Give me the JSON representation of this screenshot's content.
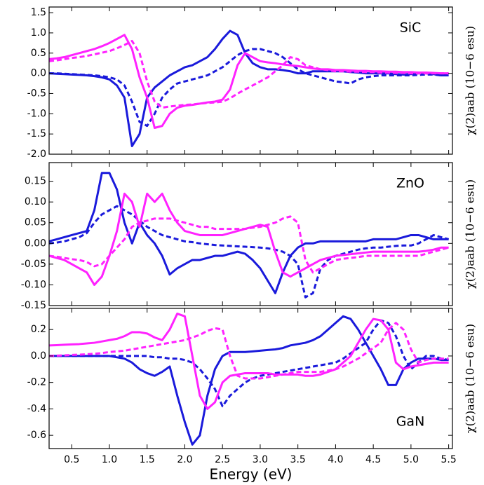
{
  "chart_data": [
    {
      "type": "line",
      "annotation": "SiC",
      "ylabel": "χ(2)aab (10−6 esu)",
      "x": [
        0.2,
        0.3,
        0.4,
        0.5,
        0.6,
        0.7,
        0.8,
        0.9,
        1.0,
        1.1,
        1.2,
        1.3,
        1.4,
        1.5,
        1.6,
        1.7,
        1.8,
        1.9,
        2.0,
        2.1,
        2.2,
        2.3,
        2.4,
        2.5,
        2.6,
        2.7,
        2.8,
        2.9,
        3.0,
        3.1,
        3.2,
        3.3,
        3.4,
        3.5,
        3.6,
        3.7,
        3.8,
        3.9,
        4.0,
        4.1,
        4.2,
        4.3,
        4.4,
        4.5,
        4.6,
        4.7,
        4.8,
        4.9,
        5.0,
        5.1,
        5.2,
        5.3,
        5.4,
        5.5
      ],
      "xlim": [
        0.2,
        5.55
      ],
      "xticks": [
        0.5,
        {
          "value": 1,
          "label": "1.0"
        },
        1.5,
        {
          "value": 2,
          "label": "2.0"
        },
        2.5,
        {
          "value": 3,
          "label": "3.0"
        },
        3.5,
        {
          "value": 4,
          "label": "4.0"
        },
        4.5,
        {
          "value": 5,
          "label": "5.0"
        },
        5.5
      ],
      "ylim": [
        -2.0,
        1.64
      ],
      "yticks": [
        {
          "value": -2,
          "label": "-2.0"
        },
        -1.5,
        {
          "value": -1,
          "label": "-1.0"
        },
        -0.5,
        {
          "value": 0,
          "label": "0.0"
        },
        0.5,
        {
          "value": 1,
          "label": "1.0"
        },
        1.5
      ],
      "series": [
        {
          "color": "#1a1adb",
          "dashed": false,
          "values": [
            0,
            -0.01,
            -0.02,
            -0.03,
            -0.04,
            -0.05,
            -0.07,
            -0.1,
            -0.15,
            -0.3,
            -0.6,
            -1.8,
            -1.5,
            -0.6,
            -0.35,
            -0.2,
            -0.05,
            0.05,
            0.15,
            0.2,
            0.3,
            0.4,
            0.6,
            0.85,
            1.05,
            0.95,
            0.5,
            0.25,
            0.15,
            0.1,
            0.1,
            0.08,
            0.05,
            0,
            0,
            0.05,
            0.05,
            0.05,
            0.05,
            0.05,
            0.03,
            0.02,
            0,
            0,
            0,
            0,
            -0.02,
            -0.03,
            -0.02,
            0,
            0,
            -0.02,
            -0.05,
            -0.05
          ]
        },
        {
          "color": "#1a1adb",
          "dashed": true,
          "values": [
            0,
            0,
            -0.01,
            -0.02,
            -0.03,
            -0.04,
            -0.05,
            -0.07,
            -0.1,
            -0.15,
            -0.3,
            -0.7,
            -1.2,
            -1.3,
            -1.0,
            -0.6,
            -0.4,
            -0.25,
            -0.2,
            -0.15,
            -0.1,
            -0.05,
            0.05,
            0.15,
            0.3,
            0.45,
            0.55,
            0.6,
            0.6,
            0.55,
            0.5,
            0.4,
            0.25,
            0.1,
            0,
            -0.05,
            -0.1,
            -0.15,
            -0.2,
            -0.22,
            -0.25,
            -0.15,
            -0.1,
            -0.07,
            -0.05,
            -0.05,
            -0.05,
            -0.05,
            -0.05,
            -0.04,
            -0.03,
            -0.03,
            -0.05,
            -0.05
          ]
        },
        {
          "color": "#ff22ff",
          "dashed": false,
          "values": [
            0.35,
            0.37,
            0.4,
            0.45,
            0.5,
            0.55,
            0.6,
            0.67,
            0.75,
            0.85,
            0.95,
            0.6,
            -0.1,
            -0.6,
            -1.35,
            -1.3,
            -1.0,
            -0.85,
            -0.8,
            -0.78,
            -0.75,
            -0.72,
            -0.7,
            -0.65,
            -0.4,
            0.2,
            0.5,
            0.4,
            0.3,
            0.27,
            0.25,
            0.22,
            0.2,
            0.18,
            0.15,
            0.12,
            0.1,
            0.1,
            0.08,
            0.08,
            0.07,
            0.06,
            0.06,
            0.05,
            0.05,
            0.04,
            0.04,
            0.03,
            0.03,
            0.02,
            0.02,
            0.01,
            0,
            0
          ]
        },
        {
          "color": "#ff22ff",
          "dashed": true,
          "values": [
            0.3,
            0.32,
            0.35,
            0.38,
            0.4,
            0.43,
            0.47,
            0.51,
            0.55,
            0.62,
            0.7,
            0.8,
            0.5,
            -0.2,
            -0.7,
            -0.85,
            -0.82,
            -0.8,
            -0.78,
            -0.77,
            -0.75,
            -0.73,
            -0.72,
            -0.7,
            -0.62,
            -0.5,
            -0.4,
            -0.3,
            -0.2,
            -0.1,
            0.05,
            0.2,
            0.4,
            0.35,
            0.2,
            0.15,
            0.1,
            0.08,
            0.05,
            0.05,
            0.04,
            0.04,
            0.03,
            0.03,
            0.02,
            0.02,
            0.01,
            0.01,
            0,
            0,
            0,
            0,
            0,
            0
          ]
        }
      ]
    },
    {
      "type": "line",
      "annotation": "ZnO",
      "ylabel": "χ(2)aab (10−6 esu)",
      "x": [
        0.2,
        0.3,
        0.4,
        0.5,
        0.6,
        0.7,
        0.8,
        0.9,
        1.0,
        1.1,
        1.2,
        1.3,
        1.4,
        1.5,
        1.6,
        1.7,
        1.8,
        1.9,
        2.0,
        2.1,
        2.2,
        2.3,
        2.4,
        2.5,
        2.6,
        2.7,
        2.8,
        2.9,
        3.0,
        3.1,
        3.2,
        3.3,
        3.4,
        3.5,
        3.6,
        3.7,
        3.8,
        3.9,
        4.0,
        4.1,
        4.2,
        4.3,
        4.4,
        4.5,
        4.6,
        4.7,
        4.8,
        4.9,
        5.0,
        5.1,
        5.2,
        5.3,
        5.4,
        5.5
      ],
      "xlim": [
        0.2,
        5.55
      ],
      "xticks": [
        0.5,
        {
          "value": 1,
          "label": "1.0"
        },
        1.5,
        {
          "value": 2,
          "label": "2.0"
        },
        2.5,
        {
          "value": 3,
          "label": "3.0"
        },
        3.5,
        {
          "value": 4,
          "label": "4.0"
        },
        4.5,
        {
          "value": 5,
          "label": "5.0"
        },
        5.5
      ],
      "ylim": [
        -0.15,
        0.195
      ],
      "yticks": [
        -0.15,
        {
          "value": -0.1,
          "label": "-0.10"
        },
        -0.05,
        {
          "value": 0,
          "label": "0.00"
        },
        0.05,
        {
          "value": 0.1,
          "label": "0.10"
        },
        0.15
      ],
      "series": [
        {
          "color": "#1a1adb",
          "dashed": false,
          "values": [
            0.005,
            0.01,
            0.015,
            0.02,
            0.025,
            0.03,
            0.08,
            0.17,
            0.17,
            0.13,
            0.05,
            0.0,
            0.05,
            0.02,
            0.0,
            -0.03,
            -0.075,
            -0.06,
            -0.05,
            -0.04,
            -0.04,
            -0.035,
            -0.03,
            -0.03,
            -0.025,
            -0.02,
            -0.025,
            -0.04,
            -0.06,
            -0.09,
            -0.12,
            -0.07,
            -0.03,
            -0.01,
            0.0,
            0.0,
            0.005,
            0.005,
            0.005,
            0.005,
            0.005,
            0.005,
            0.005,
            0.01,
            0.01,
            0.01,
            0.01,
            0.015,
            0.02,
            0.02,
            0.015,
            0.01,
            0.01,
            0.01
          ]
        },
        {
          "color": "#1a1adb",
          "dashed": true,
          "values": [
            0,
            0.002,
            0.005,
            0.01,
            0.015,
            0.025,
            0.05,
            0.07,
            0.08,
            0.09,
            0.08,
            0.07,
            0.055,
            0.04,
            0.03,
            0.02,
            0.015,
            0.01,
            0.005,
            0.003,
            0.0,
            -0.002,
            -0.004,
            -0.005,
            -0.006,
            -0.007,
            -0.008,
            -0.009,
            -0.01,
            -0.012,
            -0.015,
            -0.02,
            -0.03,
            -0.05,
            -0.13,
            -0.12,
            -0.06,
            -0.04,
            -0.03,
            -0.025,
            -0.02,
            -0.015,
            -0.012,
            -0.01,
            -0.01,
            -0.008,
            -0.006,
            -0.005,
            -0.005,
            0.0,
            0.01,
            0.02,
            0.015,
            0.01
          ]
        },
        {
          "color": "#ff22ff",
          "dashed": false,
          "values": [
            -0.03,
            -0.035,
            -0.04,
            -0.05,
            -0.06,
            -0.07,
            -0.1,
            -0.08,
            -0.03,
            0.03,
            0.12,
            0.1,
            0.04,
            0.12,
            0.1,
            0.12,
            0.08,
            0.05,
            0.03,
            0.025,
            0.02,
            0.02,
            0.02,
            0.02,
            0.025,
            0.03,
            0.035,
            0.04,
            0.045,
            0.04,
            -0.02,
            -0.07,
            -0.08,
            -0.07,
            -0.06,
            -0.05,
            -0.04,
            -0.035,
            -0.03,
            -0.028,
            -0.026,
            -0.024,
            -0.022,
            -0.02,
            -0.02,
            -0.02,
            -0.02,
            -0.02,
            -0.02,
            -0.02,
            -0.018,
            -0.015,
            -0.01,
            -0.01
          ]
        },
        {
          "color": "#ff22ff",
          "dashed": true,
          "values": [
            -0.03,
            -0.032,
            -0.035,
            -0.038,
            -0.04,
            -0.045,
            -0.055,
            -0.05,
            -0.03,
            -0.01,
            0.01,
            0.04,
            0.05,
            0.055,
            0.06,
            0.06,
            0.06,
            0.055,
            0.05,
            0.045,
            0.04,
            0.04,
            0.035,
            0.035,
            0.035,
            0.035,
            0.035,
            0.038,
            0.04,
            0.045,
            0.05,
            0.06,
            0.065,
            0.05,
            -0.04,
            -0.07,
            -0.06,
            -0.05,
            -0.04,
            -0.037,
            -0.035,
            -0.033,
            -0.03,
            -0.03,
            -0.03,
            -0.03,
            -0.03,
            -0.03,
            -0.03,
            -0.03,
            -0.025,
            -0.02,
            -0.015,
            -0.01
          ]
        }
      ]
    },
    {
      "type": "line",
      "annotation": "GaN",
      "ylabel": "χ(2)aab (10−6 esu)",
      "xlabel": "Energy (eV)",
      "x": [
        0.2,
        0.3,
        0.4,
        0.5,
        0.6,
        0.7,
        0.8,
        0.9,
        1.0,
        1.1,
        1.2,
        1.3,
        1.4,
        1.5,
        1.6,
        1.7,
        1.8,
        1.9,
        2.0,
        2.1,
        2.2,
        2.3,
        2.4,
        2.5,
        2.6,
        2.7,
        2.8,
        2.9,
        3.0,
        3.1,
        3.2,
        3.3,
        3.4,
        3.5,
        3.6,
        3.7,
        3.8,
        3.9,
        4.0,
        4.1,
        4.2,
        4.3,
        4.4,
        4.5,
        4.6,
        4.7,
        4.8,
        4.9,
        5.0,
        5.1,
        5.2,
        5.3,
        5.4,
        5.5
      ],
      "xlim": [
        0.2,
        5.55
      ],
      "xticks": [
        0.5,
        {
          "value": 1,
          "label": "1.0"
        },
        1.5,
        {
          "value": 2,
          "label": "2.0"
        },
        2.5,
        {
          "value": 3,
          "label": "3.0"
        },
        3.5,
        {
          "value": 4,
          "label": "4.0"
        },
        4.5,
        {
          "value": 5,
          "label": "5.0"
        },
        5.5
      ],
      "ylim": [
        -0.7,
        0.36
      ],
      "yticks": [
        -0.6,
        -0.4,
        -0.2,
        {
          "value": 0,
          "label": "0.0"
        },
        0.2
      ],
      "series": [
        {
          "color": "#1a1adb",
          "dashed": false,
          "values": [
            0,
            0,
            0,
            0,
            0,
            0,
            0,
            0,
            0,
            -0.01,
            -0.02,
            -0.05,
            -0.1,
            -0.13,
            -0.15,
            -0.12,
            -0.08,
            -0.3,
            -0.5,
            -0.67,
            -0.6,
            -0.3,
            -0.1,
            0,
            0.03,
            0.03,
            0.03,
            0.035,
            0.04,
            0.045,
            0.05,
            0.06,
            0.08,
            0.09,
            0.1,
            0.12,
            0.15,
            0.2,
            0.25,
            0.3,
            0.28,
            0.2,
            0.1,
            0,
            -0.1,
            -0.22,
            -0.22,
            -0.1,
            -0.05,
            -0.02,
            -0.02,
            -0.02,
            -0.03,
            -0.03
          ]
        },
        {
          "color": "#1a1adb",
          "dashed": true,
          "values": [
            0,
            0,
            0,
            0,
            0,
            0,
            0,
            0,
            0,
            0,
            0,
            0,
            0,
            0,
            -0.01,
            -0.01,
            -0.02,
            -0.02,
            -0.03,
            -0.05,
            -0.1,
            -0.17,
            -0.25,
            -0.38,
            -0.3,
            -0.25,
            -0.2,
            -0.17,
            -0.15,
            -0.14,
            -0.13,
            -0.12,
            -0.11,
            -0.1,
            -0.09,
            -0.08,
            -0.07,
            -0.06,
            -0.05,
            -0.02,
            0.02,
            0.06,
            0.1,
            0.2,
            0.27,
            0.25,
            0.15,
            0.0,
            -0.1,
            -0.05,
            0,
            0,
            -0.02,
            -0.03
          ]
        },
        {
          "color": "#ff22ff",
          "dashed": false,
          "values": [
            0.08,
            0.082,
            0.085,
            0.088,
            0.09,
            0.095,
            0.1,
            0.11,
            0.12,
            0.13,
            0.15,
            0.18,
            0.18,
            0.17,
            0.14,
            0.12,
            0.2,
            0.32,
            0.3,
            0.0,
            -0.3,
            -0.4,
            -0.35,
            -0.2,
            -0.15,
            -0.14,
            -0.13,
            -0.13,
            -0.13,
            -0.13,
            -0.14,
            -0.14,
            -0.14,
            -0.14,
            -0.15,
            -0.15,
            -0.14,
            -0.12,
            -0.1,
            -0.05,
            0.0,
            0.1,
            0.2,
            0.28,
            0.27,
            0.2,
            -0.05,
            -0.1,
            -0.08,
            -0.07,
            -0.06,
            -0.05,
            -0.05,
            -0.05
          ]
        },
        {
          "color": "#ff22ff",
          "dashed": true,
          "values": [
            0,
            0.003,
            0.005,
            0.008,
            0.01,
            0.013,
            0.017,
            0.022,
            0.03,
            0.035,
            0.04,
            0.05,
            0.06,
            0.07,
            0.08,
            0.09,
            0.1,
            0.11,
            0.12,
            0.14,
            0.16,
            0.19,
            0.21,
            0.2,
            0.0,
            -0.15,
            -0.17,
            -0.17,
            -0.17,
            -0.16,
            -0.15,
            -0.14,
            -0.13,
            -0.12,
            -0.12,
            -0.12,
            -0.12,
            -0.11,
            -0.1,
            -0.08,
            -0.05,
            -0.02,
            0.02,
            0.06,
            0.1,
            0.2,
            0.25,
            0.2,
            0.05,
            -0.05,
            -0.03,
            -0.02,
            -0.02,
            -0.02
          ]
        }
      ]
    }
  ]
}
